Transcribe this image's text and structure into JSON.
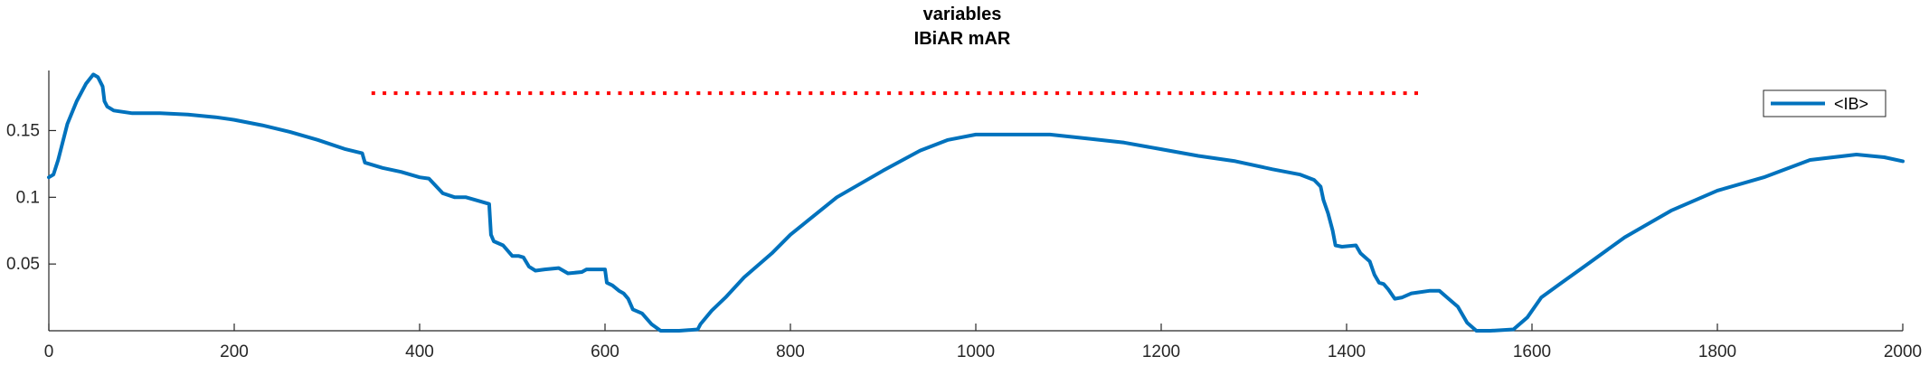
{
  "chart_data": {
    "type": "line",
    "title": "variables",
    "subtitle": "IBiAR mAR",
    "xlabel": "",
    "ylabel": "",
    "xlim": [
      0,
      2000
    ],
    "ylim": [
      0,
      0.195
    ],
    "xticks": [
      0,
      200,
      400,
      600,
      800,
      1000,
      1200,
      1400,
      1600,
      1800,
      2000
    ],
    "xtick_labels": [
      "0",
      "200",
      "400",
      "600",
      "800",
      "1000",
      "1200",
      "1400",
      "1600",
      "1800",
      "2000"
    ],
    "yticks": [
      0.05,
      0.1,
      0.15
    ],
    "ytick_labels": [
      "0.05",
      "0.1",
      "0.15"
    ],
    "grid": false,
    "legend_position": "top-right",
    "series": [
      {
        "name": "<IB>",
        "color": "#0072BD",
        "style": "solid",
        "x": [
          0,
          5,
          10,
          20,
          30,
          40,
          48,
          53,
          58,
          60,
          63,
          70,
          90,
          120,
          150,
          180,
          200,
          230,
          260,
          290,
          320,
          338,
          341,
          360,
          380,
          400,
          410,
          425,
          438,
          440,
          450,
          465,
          475,
          477,
          480,
          490,
          500,
          507,
          512,
          518,
          525,
          535,
          550,
          560,
          575,
          580,
          600,
          602,
          608,
          615,
          620,
          625,
          630,
          640,
          650,
          660,
          680,
          700,
          703,
          715,
          730,
          750,
          780,
          800,
          850,
          900,
          940,
          970,
          1000,
          1040,
          1080,
          1120,
          1160,
          1200,
          1240,
          1280,
          1320,
          1350,
          1365,
          1372,
          1375,
          1380,
          1385,
          1388,
          1395,
          1410,
          1415,
          1425,
          1430,
          1435,
          1440,
          1445,
          1452,
          1460,
          1470,
          1490,
          1500,
          1510,
          1520,
          1530,
          1540,
          1555,
          1580,
          1595,
          1610,
          1630,
          1660,
          1700,
          1750,
          1800,
          1850,
          1900,
          1950,
          1980,
          2000
        ],
        "y": [
          0.115,
          0.117,
          0.128,
          0.155,
          0.172,
          0.185,
          0.192,
          0.19,
          0.183,
          0.172,
          0.168,
          0.165,
          0.163,
          0.163,
          0.162,
          0.16,
          0.158,
          0.154,
          0.149,
          0.143,
          0.136,
          0.133,
          0.126,
          0.122,
          0.119,
          0.115,
          0.114,
          0.103,
          0.1,
          0.1,
          0.1,
          0.097,
          0.095,
          0.072,
          0.067,
          0.064,
          0.056,
          0.056,
          0.055,
          0.048,
          0.045,
          0.046,
          0.047,
          0.043,
          0.044,
          0.046,
          0.046,
          0.036,
          0.034,
          0.03,
          0.028,
          0.024,
          0.016,
          0.013,
          0.005,
          0.0,
          0.0,
          0.001,
          0.005,
          0.015,
          0.025,
          0.04,
          0.058,
          0.072,
          0.1,
          0.12,
          0.135,
          0.143,
          0.147,
          0.147,
          0.147,
          0.144,
          0.141,
          0.136,
          0.131,
          0.127,
          0.121,
          0.117,
          0.113,
          0.108,
          0.098,
          0.088,
          0.075,
          0.064,
          0.063,
          0.064,
          0.058,
          0.052,
          0.042,
          0.036,
          0.035,
          0.031,
          0.024,
          0.025,
          0.028,
          0.03,
          0.03,
          0.024,
          0.018,
          0.006,
          0.0,
          0.0,
          0.001,
          0.01,
          0.025,
          0.035,
          0.05,
          0.07,
          0.09,
          0.105,
          0.115,
          0.128,
          0.132,
          0.13,
          0.127
        ]
      },
      {
        "name": "",
        "color": "#FF0000",
        "style": "dotted",
        "x": [
          350,
          1480
        ],
        "y": [
          0.178,
          0.178
        ]
      }
    ]
  }
}
